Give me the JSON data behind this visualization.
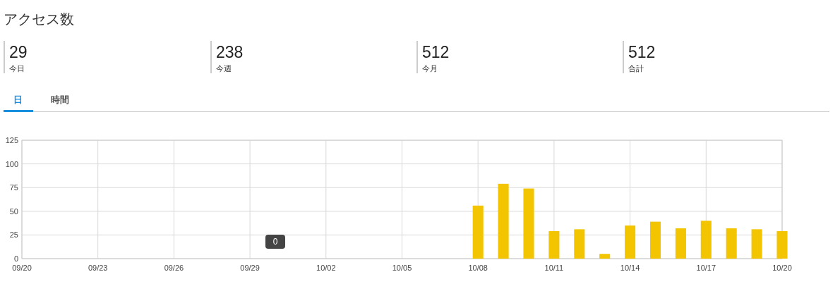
{
  "chart_data": [
    {
      "type": "other",
      "title": "アクセス数",
      "categories": [
        "今日",
        "今週",
        "今月",
        "合計"
      ],
      "values": [
        29,
        238,
        512,
        512
      ],
      "data_labels": true,
      "annotations": [
        "日",
        "時間"
      ]
    },
    {
      "type": "bar",
      "color": "#f2c500",
      "grid": true,
      "x": [
        "--09-20",
        "--09-21",
        "--09-22",
        "--09-23",
        "--09-24",
        "--09-25",
        "--09-26",
        "--09-27",
        "--09-28",
        "--09-29",
        "--09-30",
        "--10-01",
        "--10-02",
        "--10-03",
        "--10-04",
        "--10-05",
        "--10-06",
        "--10-07",
        "--10-08",
        "--10-09",
        "--10-10",
        "--10-11",
        "--10-12",
        "--10-13",
        "--10-14",
        "--10-15",
        "--10-16",
        "--10-17",
        "--10-18",
        "--10-19",
        "--10-20"
      ],
      "values": [
        0,
        0,
        0,
        0,
        0,
        0,
        0,
        0,
        0,
        0,
        0,
        0,
        0,
        0,
        0,
        0,
        0,
        0,
        56,
        79,
        74,
        29,
        31,
        5,
        35,
        39,
        32,
        40,
        32,
        31,
        29
      ],
      "xlim": [
        "--09-20",
        "--10-20"
      ],
      "xticks": [
        {
          "value": "--09-20",
          "label": "09/20"
        },
        {
          "value": "--09-23",
          "label": "09/23"
        },
        {
          "value": "--09-26",
          "label": "09/26"
        },
        {
          "value": "--09-29",
          "label": "09/29"
        },
        {
          "value": "--10-02",
          "label": "10/02"
        },
        {
          "value": "--10-05",
          "label": "10/05"
        },
        {
          "value": "--10-08",
          "label": "10/08"
        },
        {
          "value": "--10-11",
          "label": "10/11"
        },
        {
          "value": "--10-14",
          "label": "10/14"
        },
        {
          "value": "--10-17",
          "label": "10/17"
        },
        {
          "value": "--10-20",
          "label": "10/20"
        }
      ],
      "ylim": [
        0,
        125
      ],
      "yticks": [
        0,
        25,
        50,
        75,
        100,
        125
      ],
      "annotations": [
        {
          "text": "0",
          "x": "--09-30",
          "y": 0
        }
      ]
    }
  ]
}
